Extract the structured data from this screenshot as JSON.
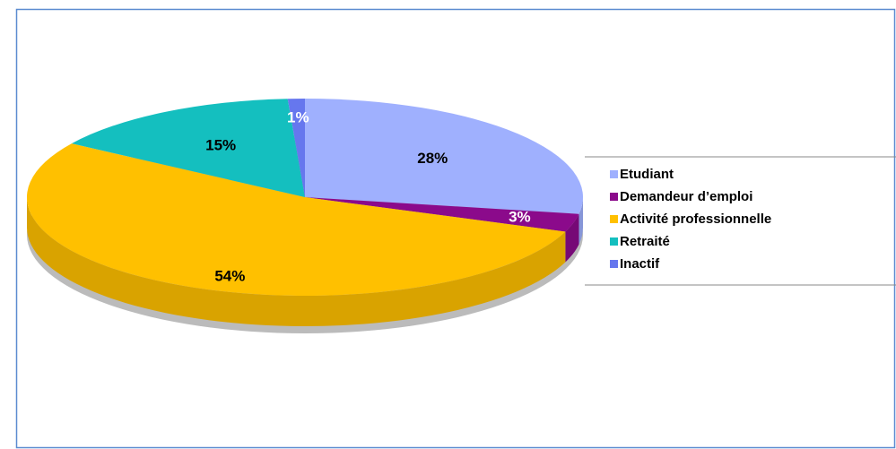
{
  "chart_data": {
    "type": "pie",
    "categories": [
      "Etudiant",
      "Demandeur d’emploi",
      "Activité professionnelle",
      "Retraité",
      "Inactif"
    ],
    "values": [
      28,
      3,
      54,
      15,
      1
    ],
    "value_labels": [
      "28%",
      "3%",
      "54%",
      "15%",
      "1%"
    ],
    "colors": [
      "#9fb0fe",
      "#8b0a8b",
      "#ffc000",
      "#14bfbf",
      "#6677ee"
    ],
    "label_colors": [
      "#000000",
      "#ffffff",
      "#000000",
      "#000000",
      "#ffffff"
    ],
    "legend": "right"
  }
}
